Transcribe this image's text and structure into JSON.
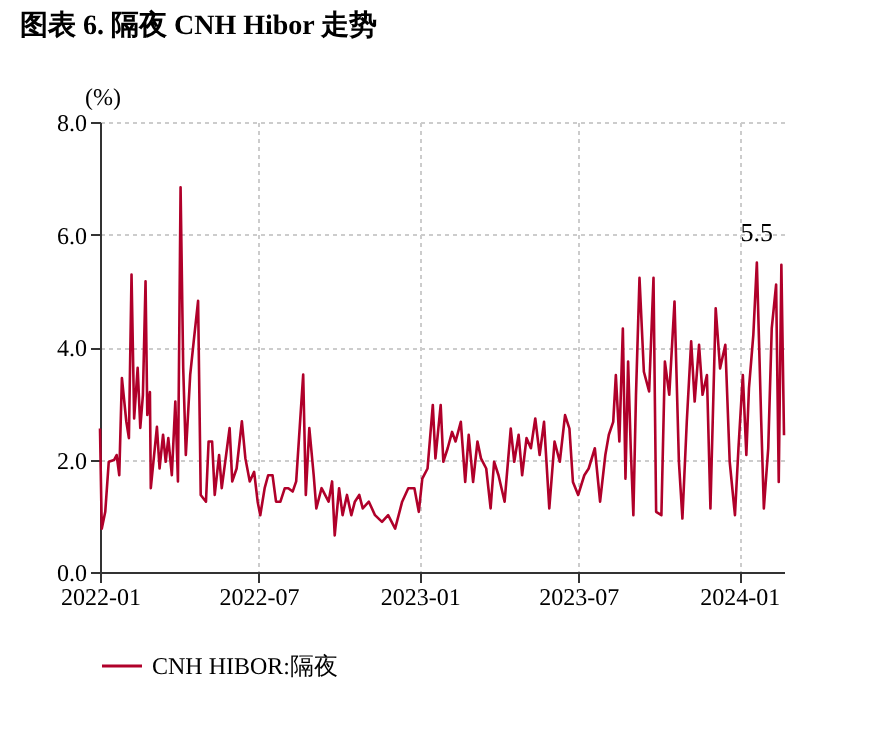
{
  "chart_data": {
    "type": "line",
    "title": "图表 6. 隔夜 CNH Hibor 走势",
    "ylabel": "(%)",
    "x": [
      "2022-01-01",
      "2022-01-03",
      "2022-01-07",
      "2022-01-11",
      "2022-01-17",
      "2022-01-20",
      "2022-01-23",
      "2022-01-26",
      "2022-01-31",
      "2022-02-03",
      "2022-02-06",
      "2022-02-09",
      "2022-02-13",
      "2022-02-16",
      "2022-02-19",
      "2022-02-22",
      "2022-02-24",
      "2022-02-27",
      "2022-02-28",
      "2022-03-07",
      "2022-03-10",
      "2022-03-14",
      "2022-03-17",
      "2022-03-20",
      "2022-03-24",
      "2022-03-28",
      "2022-03-31",
      "2022-04-03",
      "2022-04-06",
      "2022-04-09",
      "2022-04-14",
      "2022-04-18",
      "2022-04-23",
      "2022-04-26",
      "2022-05-02",
      "2022-05-05",
      "2022-05-09",
      "2022-05-12",
      "2022-05-17",
      "2022-05-20",
      "2022-05-25",
      "2022-05-29",
      "2022-06-01",
      "2022-06-06",
      "2022-06-12",
      "2022-06-16",
      "2022-06-21",
      "2022-06-26",
      "2022-06-30",
      "2022-07-03",
      "2022-07-08",
      "2022-07-12",
      "2022-07-17",
      "2022-07-21",
      "2022-07-26",
      "2022-07-31",
      "2022-08-04",
      "2022-08-09",
      "2022-08-13",
      "2022-08-21",
      "2022-08-24",
      "2022-08-28",
      "2022-09-02",
      "2022-09-05",
      "2022-09-11",
      "2022-09-19",
      "2022-09-23",
      "2022-09-26",
      "2022-10-01",
      "2022-10-05",
      "2022-10-10",
      "2022-10-15",
      "2022-10-19",
      "2022-10-24",
      "2022-10-28",
      "2022-11-04",
      "2022-11-11",
      "2022-11-19",
      "2022-11-26",
      "2022-12-04",
      "2022-12-12",
      "2022-12-19",
      "2022-12-26",
      "2022-12-31",
      "2023-01-04",
      "2023-01-10",
      "2023-01-16",
      "2023-01-19",
      "2023-01-25",
      "2023-01-28",
      "2023-02-02",
      "2023-02-07",
      "2023-02-11",
      "2023-02-17",
      "2023-02-22",
      "2023-02-26",
      "2023-03-03",
      "2023-03-08",
      "2023-03-12",
      "2023-03-18",
      "2023-03-23",
      "2023-03-27",
      "2023-04-01",
      "2023-04-08",
      "2023-04-15",
      "2023-04-19",
      "2023-04-24",
      "2023-04-28",
      "2023-05-03",
      "2023-05-08",
      "2023-05-13",
      "2023-05-18",
      "2023-05-23",
      "2023-05-29",
      "2023-06-04",
      "2023-06-10",
      "2023-06-16",
      "2023-06-21",
      "2023-06-25",
      "2023-07-01",
      "2023-07-08",
      "2023-07-13",
      "2023-07-20",
      "2023-07-26",
      "2023-08-01",
      "2023-08-05",
      "2023-08-10",
      "2023-08-13",
      "2023-08-17",
      "2023-08-21",
      "2023-08-24",
      "2023-08-27",
      "2023-08-30",
      "2023-09-02",
      "2023-09-05",
      "2023-09-09",
      "2023-09-14",
      "2023-09-20",
      "2023-09-25",
      "2023-09-28",
      "2023-10-04",
      "2023-10-08",
      "2023-10-13",
      "2023-10-19",
      "2023-10-24",
      "2023-10-28",
      "2023-11-02",
      "2023-11-07",
      "2023-11-11",
      "2023-11-16",
      "2023-11-20",
      "2023-11-25",
      "2023-11-29",
      "2023-12-05",
      "2023-12-10",
      "2023-12-16",
      "2023-12-21",
      "2023-12-27",
      "2023-12-31",
      "2024-01-05",
      "2024-01-09",
      "2024-01-12",
      "2024-01-17",
      "2024-01-21",
      "2024-01-26",
      "2024-01-29",
      "2024-02-03",
      "2024-02-07",
      "2024-02-12",
      "2024-02-15",
      "2024-02-18",
      "2024-02-21"
    ],
    "series": [
      {
        "name": "CNH HIBOR:隔夜",
        "color": "#b0002a",
        "values": [
          2.55,
          0.77,
          1.07,
          1.96,
          1.99,
          2.08,
          1.72,
          3.45,
          2.68,
          2.38,
          5.29,
          2.73,
          3.63,
          2.56,
          3.15,
          5.17,
          2.79,
          3.2,
          1.49,
          2.58,
          1.84,
          2.44,
          1.96,
          2.38,
          1.72,
          3.03,
          1.61,
          6.84,
          3.63,
          2.08,
          3.51,
          4.1,
          4.82,
          1.37,
          1.25,
          2.32,
          2.32,
          1.37,
          2.08,
          1.49,
          2.08,
          2.56,
          1.61,
          1.84,
          2.68,
          2.02,
          1.61,
          1.78,
          1.25,
          1.01,
          1.49,
          1.72,
          1.72,
          1.25,
          1.25,
          1.49,
          1.49,
          1.43,
          1.61,
          3.51,
          1.37,
          2.56,
          1.72,
          1.13,
          1.49,
          1.25,
          1.61,
          0.65,
          1.49,
          1.01,
          1.37,
          1.01,
          1.25,
          1.37,
          1.13,
          1.25,
          1.01,
          0.89,
          1.01,
          0.77,
          1.25,
          1.49,
          1.49,
          1.07,
          1.66,
          1.84,
          2.97,
          2.02,
          2.97,
          1.96,
          2.2,
          2.49,
          2.32,
          2.67,
          1.6,
          2.44,
          1.6,
          2.32,
          2.02,
          1.84,
          1.13,
          1.96,
          1.72,
          1.25,
          2.55,
          1.96,
          2.44,
          1.72,
          2.38,
          2.2,
          2.73,
          2.08,
          2.67,
          1.13,
          2.32,
          1.96,
          2.79,
          2.55,
          1.6,
          1.37,
          1.72,
          1.84,
          2.2,
          1.25,
          2.08,
          2.44,
          2.67,
          3.5,
          2.32,
          4.33,
          1.66,
          3.74,
          2.2,
          1.01,
          3.15,
          5.23,
          3.56,
          3.21,
          5.23,
          1.07,
          1.01,
          3.74,
          3.15,
          4.81,
          1.96,
          0.95,
          2.67,
          4.1,
          3.03,
          4.04,
          3.15,
          3.5,
          1.13,
          4.69,
          3.62,
          4.04,
          1.96,
          1.01,
          2.2,
          3.5,
          2.08,
          3.27,
          4.22,
          5.5,
          2.67,
          1.13,
          2.2,
          4.33,
          5.11,
          1.6,
          5.46,
          2.43
        ]
      }
    ],
    "xlim": [
      "2022-01-01",
      "2024-02-21"
    ],
    "xticks": [
      "2022-01",
      "2022-07",
      "2023-01",
      "2023-07",
      "2024-01"
    ],
    "ylim": [
      0,
      8
    ],
    "yticks": [
      {
        "value": 0,
        "label": "0.0"
      },
      {
        "value": 2,
        "label": "2.0"
      },
      {
        "value": 4,
        "label": "4.0"
      },
      {
        "value": 6,
        "label": "6.0"
      },
      {
        "value": 8,
        "label": "8.0"
      }
    ],
    "annotations": [
      {
        "text": "5.5",
        "x": "2024-01-21",
        "y": 5.5
      }
    ],
    "grid": true,
    "legend": "bottom",
    "marker": "none",
    "line_style": "solid"
  }
}
